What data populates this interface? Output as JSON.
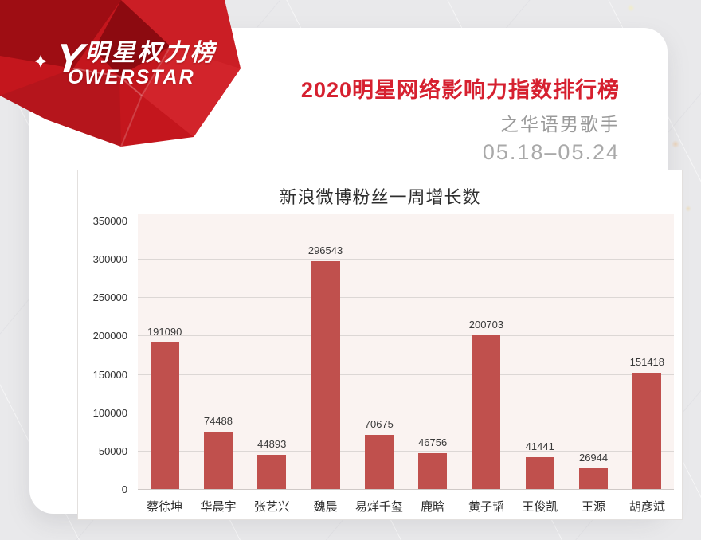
{
  "logo": {
    "cn": "明星权力榜",
    "en": "OWERSTAR",
    "mark_glyph": "Y"
  },
  "header": {
    "title": "2020明星网络影响力指数排行榜",
    "subtitle": "之华语男歌手",
    "date_range": "05.18–05.24",
    "title_color": "#d6202f"
  },
  "chart_data": {
    "type": "bar",
    "title": "新浪微博粉丝一周增长数",
    "categories": [
      "蔡徐坤",
      "华晨宇",
      "张艺兴",
      "魏晨",
      "易烊千玺",
      "鹿晗",
      "黄子韬",
      "王俊凯",
      "王源",
      "胡彦斌"
    ],
    "values": [
      191090,
      74488,
      44893,
      296543,
      70675,
      46756,
      200703,
      41441,
      26944,
      151418
    ],
    "yticks": [
      0,
      50000,
      100000,
      150000,
      200000,
      250000,
      300000,
      350000
    ],
    "ylim": [
      0,
      350000
    ],
    "xlabel": "",
    "ylabel": "",
    "grid": true,
    "value_labels": true,
    "legend": "none",
    "bar_color": "#c0504d",
    "plot_bg": "#faf3f1"
  }
}
